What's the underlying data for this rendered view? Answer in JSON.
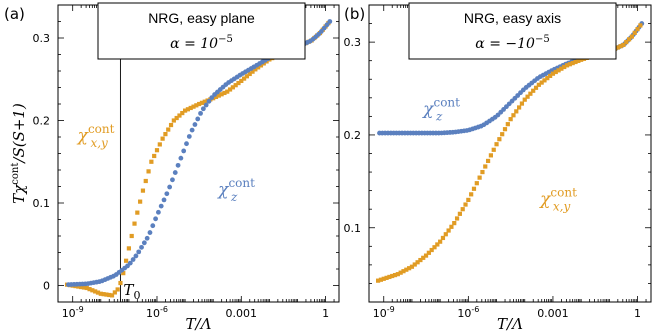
{
  "colors": {
    "orange": "#e19c24",
    "blue": "#5b80bf"
  },
  "chart_data": [
    {
      "type": "scatter",
      "panel_label": "(a)",
      "legend_title": "NRG, easy plane",
      "alpha_text": "α = 10",
      "alpha_exp": "−5",
      "xlabel": "T/Λ",
      "ylabel": "Tχcont/S(S+1)",
      "x_scale": "log",
      "xlim": [
        3e-10,
        3
      ],
      "ylim": [
        -0.02,
        0.34
      ],
      "x_ticks": [
        {
          "value": 1e-09,
          "label": "10",
          "sup": "-9"
        },
        {
          "value": 1e-06,
          "label": "10",
          "sup": "-6"
        },
        {
          "value": 0.001,
          "label": "0.001",
          "sup": ""
        },
        {
          "value": 1,
          "label": "1",
          "sup": ""
        }
      ],
      "y_ticks": [
        {
          "value": 0,
          "label": "0"
        },
        {
          "value": 0.1,
          "label": "0.1"
        },
        {
          "value": 0.2,
          "label": "0.2"
        },
        {
          "value": 0.3,
          "label": "0.3"
        }
      ],
      "vline": {
        "x": 5e-08,
        "label": "T",
        "sub": "0"
      },
      "series": [
        {
          "name": "χx,y",
          "color": "orange",
          "marker": "square",
          "curve": [
            [
              -9.2,
              0.001
            ],
            [
              -8.5,
              -0.003
            ],
            [
              -8,
              -0.01
            ],
            [
              -7.6,
              -0.012
            ],
            [
              -7.35,
              -0.003
            ],
            [
              -7.2,
              0.015
            ],
            [
              -7,
              0.045
            ],
            [
              -6.8,
              0.075
            ],
            [
              -6.5,
              0.115
            ],
            [
              -6.2,
              0.15
            ],
            [
              -5.8,
              0.178
            ],
            [
              -5.4,
              0.2
            ],
            [
              -5,
              0.212
            ],
            [
              -4.5,
              0.22
            ],
            [
              -4,
              0.227
            ],
            [
              -3.5,
              0.235
            ],
            [
              -3,
              0.248
            ],
            [
              -2.5,
              0.262
            ],
            [
              -2,
              0.274
            ],
            [
              -1.5,
              0.282
            ],
            [
              -1,
              0.289
            ],
            [
              -0.5,
              0.297
            ],
            [
              -0.2,
              0.306
            ],
            [
              0.15,
              0.32
            ]
          ],
          "annotation": {
            "base": "χ",
            "sup": "cont",
            "sub": "x,y",
            "x": 1.5e-09,
            "y": 0.175
          }
        },
        {
          "name": "χz",
          "color": "blue",
          "marker": "circle",
          "curve": [
            [
              -9.2,
              0.001
            ],
            [
              -8.5,
              0.002
            ],
            [
              -8,
              0.005
            ],
            [
              -7.5,
              0.012
            ],
            [
              -7,
              0.025
            ],
            [
              -6.7,
              0.038
            ],
            [
              -6.3,
              0.06
            ],
            [
              -6,
              0.085
            ],
            [
              -5.6,
              0.115
            ],
            [
              -5.2,
              0.15
            ],
            [
              -4.8,
              0.185
            ],
            [
              -4.4,
              0.212
            ],
            [
              -4,
              0.23
            ],
            [
              -3.5,
              0.245
            ],
            [
              -3,
              0.256
            ],
            [
              -2.5,
              0.266
            ],
            [
              -2,
              0.276
            ],
            [
              -1.5,
              0.283
            ],
            [
              -1,
              0.289
            ],
            [
              -0.5,
              0.297
            ],
            [
              -0.2,
              0.306
            ],
            [
              0.15,
              0.32
            ]
          ],
          "annotation": {
            "base": "χ",
            "sup": "cont",
            "sub": "z",
            "x": 0.00015,
            "y": 0.11
          }
        }
      ]
    },
    {
      "type": "scatter",
      "panel_label": "(b)",
      "legend_title": "NRG, easy axis",
      "alpha_text": "α = −10",
      "alpha_exp": "−5",
      "xlabel": "T/Λ",
      "ylabel": "",
      "x_scale": "log",
      "xlim": [
        3e-10,
        3
      ],
      "ylim": [
        0.02,
        0.34
      ],
      "x_ticks": [
        {
          "value": 1e-09,
          "label": "10",
          "sup": "-9"
        },
        {
          "value": 1e-06,
          "label": "10",
          "sup": "-6"
        },
        {
          "value": 0.001,
          "label": "0.001",
          "sup": ""
        },
        {
          "value": 1,
          "label": "1",
          "sup": ""
        }
      ],
      "y_ticks": [
        {
          "value": 0.1,
          "label": "0.1"
        },
        {
          "value": 0.2,
          "label": "0.2"
        },
        {
          "value": 0.3,
          "label": "0.3"
        }
      ],
      "vline": null,
      "series": [
        {
          "name": "χz",
          "color": "blue",
          "marker": "circle",
          "curve": [
            [
              -9.2,
              0.202
            ],
            [
              -8,
              0.202
            ],
            [
              -7,
              0.202
            ],
            [
              -6.5,
              0.203
            ],
            [
              -6,
              0.205
            ],
            [
              -5.5,
              0.21
            ],
            [
              -5,
              0.22
            ],
            [
              -4.5,
              0.235
            ],
            [
              -4,
              0.25
            ],
            [
              -3.5,
              0.262
            ],
            [
              -3,
              0.27
            ],
            [
              -2.5,
              0.277
            ],
            [
              -2,
              0.282
            ],
            [
              -1.5,
              0.286
            ],
            [
              -1,
              0.29
            ],
            [
              -0.5,
              0.297
            ],
            [
              -0.2,
              0.306
            ],
            [
              0.15,
              0.32
            ]
          ],
          "annotation": {
            "base": "χ",
            "sup": "cont",
            "sub": "z",
            "x": 2.5e-08,
            "y": 0.222
          }
        },
        {
          "name": "χx,y",
          "color": "orange",
          "marker": "square",
          "curve": [
            [
              -9.2,
              0.043
            ],
            [
              -8.5,
              0.05
            ],
            [
              -8,
              0.058
            ],
            [
              -7.5,
              0.07
            ],
            [
              -7,
              0.085
            ],
            [
              -6.5,
              0.105
            ],
            [
              -6,
              0.13
            ],
            [
              -5.5,
              0.16
            ],
            [
              -5,
              0.19
            ],
            [
              -4.5,
              0.217
            ],
            [
              -4,
              0.238
            ],
            [
              -3.5,
              0.254
            ],
            [
              -3,
              0.266
            ],
            [
              -2.5,
              0.275
            ],
            [
              -2,
              0.281
            ],
            [
              -1.5,
              0.286
            ],
            [
              -1,
              0.29
            ],
            [
              -0.5,
              0.297
            ],
            [
              -0.2,
              0.306
            ],
            [
              0.15,
              0.32
            ]
          ],
          "annotation": {
            "base": "χ",
            "sup": "cont",
            "sub": "x,y",
            "x": 0.00035,
            "y": 0.125
          }
        }
      ]
    }
  ]
}
